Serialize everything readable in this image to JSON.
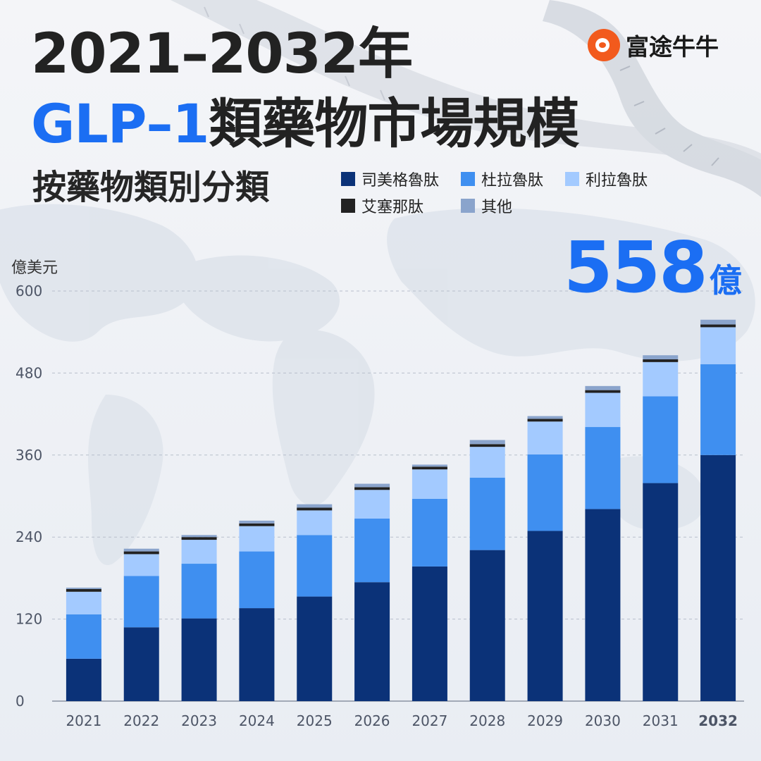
{
  "brand": {
    "name": "富途牛牛",
    "logo": "futu-bull-logo"
  },
  "title": {
    "line1": "2021–2032年",
    "line2_highlight": "GLP–1",
    "line2_rest": "類藥物市場規模",
    "subtitle": "按藥物類別分類"
  },
  "highlight": {
    "value": "558",
    "unit": "億"
  },
  "colors": {
    "司美格魯肽": "#0b3278",
    "杜拉魯肽": "#3f8ff0",
    "利拉魯肽": "#a3caff",
    "艾塞那肽": "#222222",
    "其他": "#8aa4cc",
    "accent": "#1b6ef3"
  },
  "chart_data": {
    "type": "bar",
    "stacked": true,
    "ylabel": "億美元",
    "ylim": [
      0,
      600
    ],
    "yticks": [
      "0",
      "120",
      "240",
      "360",
      "480",
      "600"
    ],
    "grid": "dashed-horizontal",
    "legend_placement": "top-right",
    "categories": [
      "2021",
      "2022",
      "2023",
      "2024",
      "2025",
      "2026",
      "2027",
      "2028",
      "2029",
      "2030",
      "2031",
      "2032"
    ],
    "highlighted_category": "2032",
    "series": [
      {
        "name": "司美格魯肽",
        "values": [
          62,
          108,
          121,
          136,
          153,
          174,
          197,
          221,
          249,
          281,
          319,
          360
        ]
      },
      {
        "name": "杜拉魯肽",
        "values": [
          65,
          75,
          80,
          83,
          90,
          93,
          99,
          106,
          112,
          120,
          127,
          133
        ]
      },
      {
        "name": "利拉魯肽",
        "values": [
          33,
          32,
          35,
          37,
          36,
          42,
          43,
          45,
          48,
          50,
          50,
          54
        ]
      },
      {
        "name": "艾塞那肽",
        "values": [
          4,
          4,
          4,
          4,
          4,
          4,
          4,
          4,
          4,
          4,
          4,
          4
        ]
      },
      {
        "name": "其他",
        "values": [
          2,
          4,
          3,
          4,
          5,
          5,
          3,
          6,
          4,
          6,
          6,
          7
        ]
      }
    ]
  }
}
